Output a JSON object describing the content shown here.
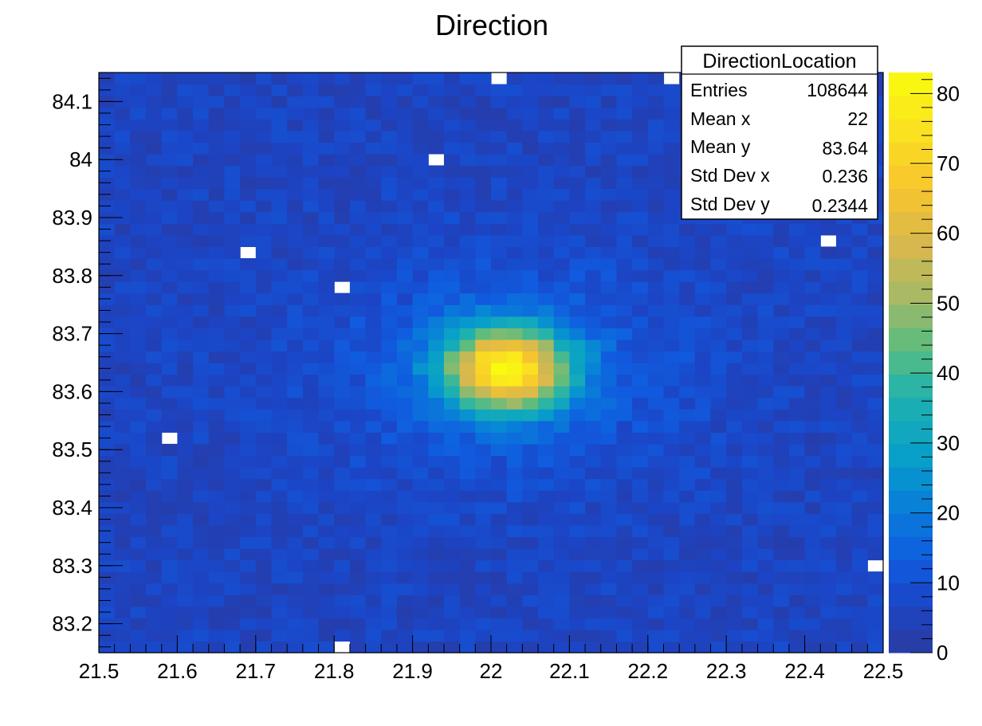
{
  "chart_data": {
    "type": "heatmap",
    "title": "Direction",
    "xlabel": "",
    "ylabel": "",
    "xlim": [
      21.5,
      22.5
    ],
    "ylim": [
      83.15,
      84.15
    ],
    "x_ticks": [
      "21.5",
      "21.6",
      "21.7",
      "21.8",
      "21.9",
      "22",
      "22.1",
      "22.2",
      "22.3",
      "22.4",
      "22.5"
    ],
    "y_ticks": [
      "83.2",
      "83.3",
      "83.4",
      "83.5",
      "83.6",
      "83.7",
      "83.8",
      "83.9",
      "84",
      "84.1"
    ],
    "bins": {
      "nx": 50,
      "ny": 50
    },
    "z_range": [
      0,
      83
    ],
    "z_ticks": [
      "0",
      "10",
      "20",
      "30",
      "40",
      "50",
      "60",
      "70",
      "80"
    ],
    "peak": {
      "x": 22.02,
      "y": 83.64,
      "value": 83
    },
    "background_level": 6,
    "empty_bins": [
      {
        "x": 22.01,
        "y": 84.14
      },
      {
        "x": 22.23,
        "y": 84.14
      },
      {
        "x": 21.93,
        "y": 84.0
      },
      {
        "x": 21.69,
        "y": 83.84
      },
      {
        "x": 22.43,
        "y": 83.86
      },
      {
        "x": 21.81,
        "y": 83.78
      },
      {
        "x": 21.59,
        "y": 83.52
      },
      {
        "x": 22.49,
        "y": 83.31
      },
      {
        "x": 21.81,
        "y": 83.16
      }
    ],
    "grid": false,
    "colormap": "parula"
  },
  "stats_box": {
    "title": "DirectionLocation",
    "rows": [
      {
        "label": "Entries",
        "value": "108644"
      },
      {
        "label": "Mean x",
        "value": "22"
      },
      {
        "label": "Mean y",
        "value": "83.64"
      },
      {
        "label": "Std Dev x",
        "value": "0.236"
      },
      {
        "label": "Std Dev y",
        "value": "0.2344"
      }
    ]
  },
  "colors": {
    "palette_low": "#2b3a9f",
    "palette_high": "#f9fb0e"
  }
}
